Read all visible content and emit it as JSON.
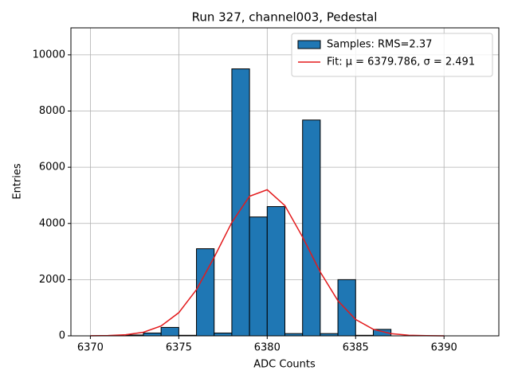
{
  "chart_data": {
    "type": "histogram",
    "title": "Run 327, channel003, Pedestal",
    "xlabel": "ADC Counts",
    "ylabel": "Entries",
    "bins": [
      6370,
      6371,
      6372,
      6373,
      6374,
      6375,
      6376,
      6377,
      6378,
      6379,
      6380,
      6381,
      6382,
      6383,
      6384,
      6385,
      6386,
      6387,
      6388,
      6389,
      6390,
      6391,
      6392
    ],
    "counts": [
      0,
      0,
      30,
      100,
      300,
      20,
      3100,
      100,
      9500,
      4230,
      4600,
      80,
      7680,
      80,
      2000,
      20,
      230,
      0,
      0,
      0,
      0,
      0
    ],
    "name": "Samples: RMS=2.37",
    "color": "#1f77b4",
    "edgecolor": "#000000",
    "series": [
      {
        "name": "Fit: μ = 6379.786, σ = 2.491",
        "color": "#e31a1c",
        "x": [
          6370,
          6371,
          6372,
          6373,
          6374,
          6375,
          6376,
          6377,
          6378,
          6379,
          6380,
          6381,
          6382,
          6383,
          6384,
          6385,
          6386,
          6387,
          6388,
          6389,
          6390
        ],
        "values": [
          2,
          10,
          39,
          128,
          351,
          824,
          1645,
          2793,
          4037,
          4966,
          5200,
          4635,
          3517,
          2272,
          1248,
          583,
          232,
          79,
          23,
          6,
          1
        ]
      }
    ],
    "xlim": [
      6368.9,
      6393.1
    ],
    "ylim": [
      0,
      10960
    ],
    "xticks": [
      6370,
      6375,
      6380,
      6385,
      6390
    ],
    "yticks": [
      0,
      2000,
      4000,
      6000,
      8000,
      10000
    ],
    "grid": true,
    "legend": "upper right"
  }
}
